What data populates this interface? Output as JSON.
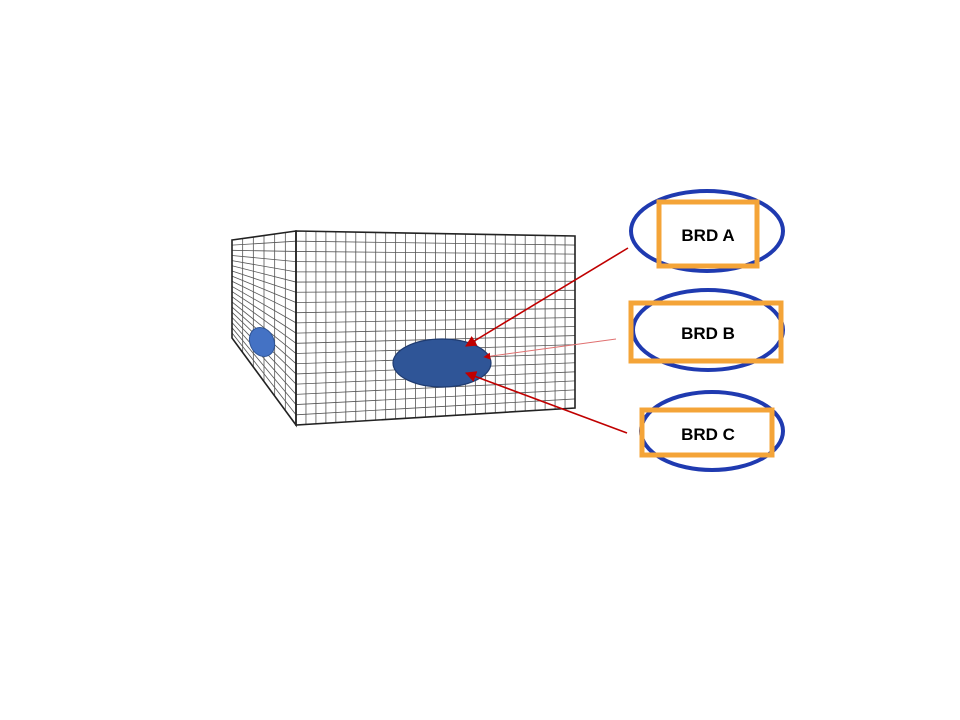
{
  "colors": {
    "grid_stroke": "#555555",
    "box_edge": "#222222",
    "patch_fill": "#2f5597",
    "patch_fill_small": "#4472c4",
    "arrow": "#c00000",
    "ellipse_border": "#1f3ab0",
    "rect_border": "#f4a438"
  },
  "labels": [
    {
      "id": "a",
      "text": "BRD A"
    },
    {
      "id": "b",
      "text": "BRD B"
    },
    {
      "id": "c",
      "text": "BRD C"
    }
  ]
}
